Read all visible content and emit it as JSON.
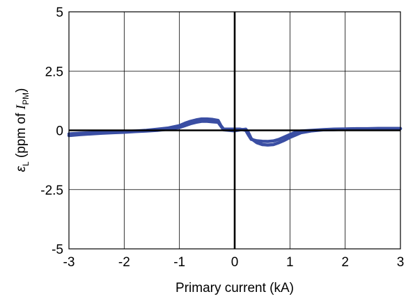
{
  "chart_data": {
    "type": "line",
    "xlabel": "Primary current (kA)",
    "ylabel": {
      "symbol": "ε",
      "symbol_sub": "L",
      "text_before": " (ppm of ",
      "italic": "I",
      "italic_sub": "PM",
      "text_after": ")"
    },
    "xlim": [
      -3,
      3
    ],
    "ylim": [
      -5,
      5
    ],
    "x_ticks": [
      -3,
      -2,
      -1,
      0,
      1,
      2,
      3
    ],
    "x_tick_labels": [
      "-3",
      "-2",
      "-1",
      "0",
      "1",
      "2",
      "3"
    ],
    "y_ticks": [
      -5,
      -2.5,
      0,
      2.5,
      5
    ],
    "y_tick_labels": [
      "-5",
      "-2.5",
      "0",
      "2.5",
      "5"
    ],
    "grid": true,
    "zero_lines": true,
    "series": [
      {
        "color": "#3a4ea3",
        "x": [
          -3.0,
          -2.8,
          -2.6,
          -2.4,
          -2.2,
          -2.0,
          -1.8,
          -1.6,
          -1.4,
          -1.2,
          -1.0,
          -0.9,
          -0.8,
          -0.7,
          -0.6,
          -0.5,
          -0.4,
          -0.3,
          -0.25,
          -0.2,
          -0.1,
          0.0,
          0.1,
          0.2,
          0.25,
          0.3,
          0.4,
          0.5,
          0.6,
          0.7,
          0.8,
          0.9,
          1.0,
          1.1,
          1.2,
          1.4,
          1.6,
          1.8,
          2.0,
          2.2,
          2.4,
          2.6,
          2.8,
          3.0
        ],
        "y": [
          -0.15,
          -0.12,
          -0.1,
          -0.08,
          -0.06,
          -0.05,
          -0.03,
          0.0,
          0.05,
          0.1,
          0.2,
          0.3,
          0.38,
          0.44,
          0.48,
          0.48,
          0.46,
          0.42,
          0.2,
          0.05,
          0.05,
          0.05,
          0.05,
          0.0,
          -0.2,
          -0.38,
          -0.44,
          -0.46,
          -0.47,
          -0.45,
          -0.38,
          -0.28,
          -0.18,
          -0.08,
          -0.03,
          0.0,
          0.03,
          0.05,
          0.06,
          0.07,
          0.07,
          0.08,
          0.08,
          0.08
        ]
      },
      {
        "color": "#3a4ea3",
        "x": [
          -3.0,
          -2.8,
          -2.6,
          -2.4,
          -2.2,
          -2.0,
          -1.8,
          -1.6,
          -1.4,
          -1.2,
          -1.0,
          -0.9,
          -0.8,
          -0.7,
          -0.6,
          -0.5,
          -0.4,
          -0.3,
          -0.25,
          -0.2,
          -0.1,
          0.0,
          0.1,
          0.2,
          0.25,
          0.3,
          0.4,
          0.5,
          0.6,
          0.7,
          0.8,
          0.9,
          1.0,
          1.1,
          1.2,
          1.4,
          1.6,
          1.8,
          2.0,
          2.2,
          2.4,
          2.6,
          2.8,
          3.0
        ],
        "y": [
          -0.22,
          -0.18,
          -0.15,
          -0.12,
          -0.1,
          -0.08,
          -0.05,
          -0.03,
          0.0,
          0.05,
          0.12,
          0.2,
          0.28,
          0.34,
          0.38,
          0.38,
          0.36,
          0.34,
          0.18,
          0.02,
          0.0,
          -0.02,
          0.02,
          0.05,
          -0.1,
          -0.35,
          -0.52,
          -0.6,
          -0.62,
          -0.6,
          -0.52,
          -0.42,
          -0.3,
          -0.2,
          -0.1,
          -0.02,
          0.02,
          0.03,
          0.05,
          0.06,
          0.06,
          0.07,
          0.07,
          0.07
        ]
      }
    ]
  }
}
